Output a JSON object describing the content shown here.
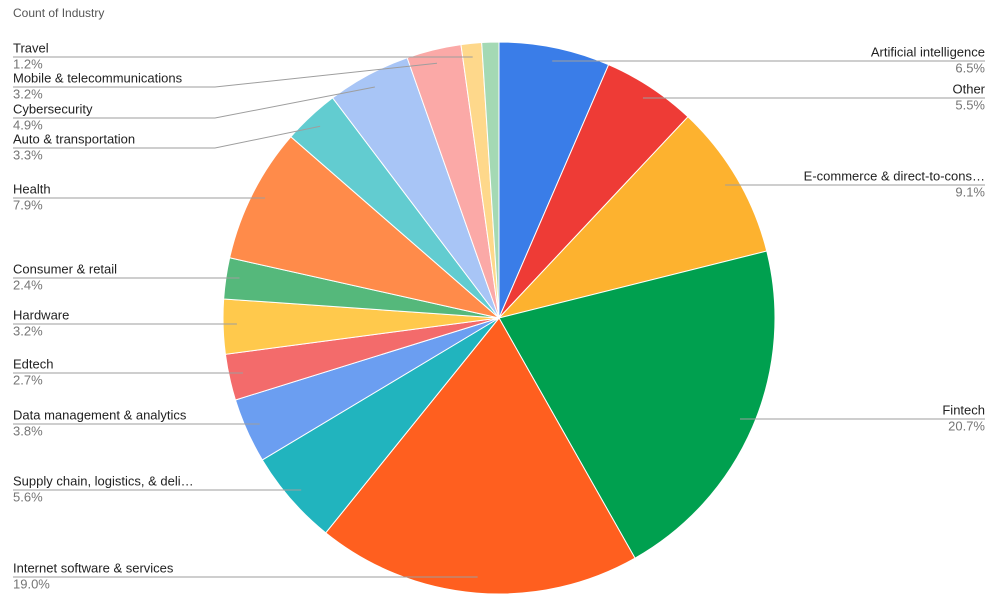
{
  "chart_data": {
    "type": "pie",
    "title": "Count of Industry",
    "categories": [
      "Artificial intelligence",
      "Other",
      "E-commerce & direct-to-cons…",
      "Fintech",
      "Internet software & services",
      "Supply chain, logistics, & deli…",
      "Data management & analytics",
      "Edtech",
      "Hardware",
      "Consumer & retail",
      "Health",
      "Auto & transportation",
      "Cybersecurity",
      "Mobile & telecommunications",
      "Travel",
      null
    ],
    "values": [
      6.5,
      5.5,
      9.1,
      20.7,
      19.0,
      5.6,
      3.8,
      2.7,
      3.2,
      2.4,
      7.9,
      3.3,
      4.9,
      3.2,
      1.2,
      1.0
    ],
    "value_labels": [
      "6.5%",
      "5.5%",
      "9.1%",
      "20.7%",
      "19.0%",
      "5.6%",
      "3.8%",
      "2.7%",
      "3.2%",
      "2.4%",
      "7.9%",
      "3.3%",
      "4.9%",
      "3.2%",
      "1.2%",
      null
    ],
    "colors": [
      "#3a7de8",
      "#ee3b36",
      "#fdb22f",
      "#00a04f",
      "#ff5f1f",
      "#21b4be",
      "#6b9ef1",
      "#f36b6b",
      "#ffc94c",
      "#55b87b",
      "#ff8b4a",
      "#62ccd0",
      "#a8c5f6",
      "#fba9a7",
      "#fed88b",
      "#a4d9b4"
    ]
  }
}
